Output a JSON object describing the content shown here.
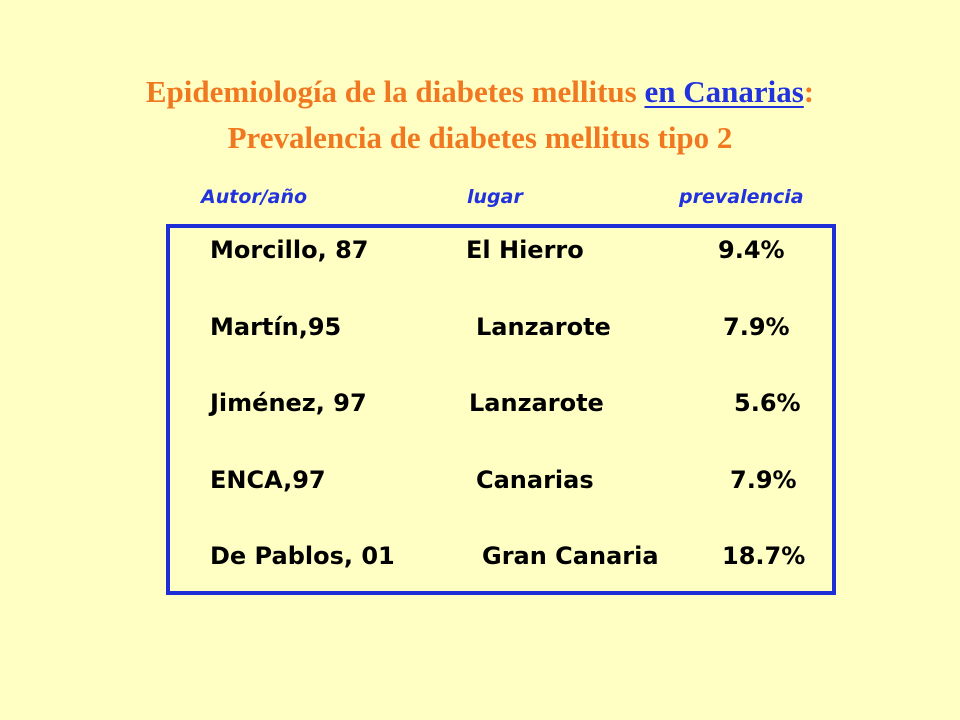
{
  "title": {
    "line1_prefix": "Epidemiología de la diabetes mellitus ",
    "line1_link": "en Canarias",
    "line1_suffix": ":",
    "line2": "Prevalencia de diabetes mellitus tipo 2"
  },
  "columns": {
    "author": "Autor/año",
    "place": "lugar",
    "prevalence": "prevalencia"
  },
  "rows": [
    {
      "author": "Morcillo, 87",
      "place": "El Hierro",
      "prevalence": "9.4%"
    },
    {
      "author": "Martín,95",
      "place": "Lanzarote",
      "prevalence": "7.9%"
    },
    {
      "author": "Jiménez, 97",
      "place": "Lanzarote",
      "prevalence": "5.6%"
    },
    {
      "author": "ENCA,97",
      "place": "Canarias",
      "prevalence": "7.9%"
    },
    {
      "author": "De Pablos, 01",
      "place": "Gran Canaria",
      "prevalence": "18.7%"
    }
  ],
  "colors": {
    "background": "#FFFFC4",
    "title": "#F07820",
    "accent_blue": "#2233DD"
  }
}
